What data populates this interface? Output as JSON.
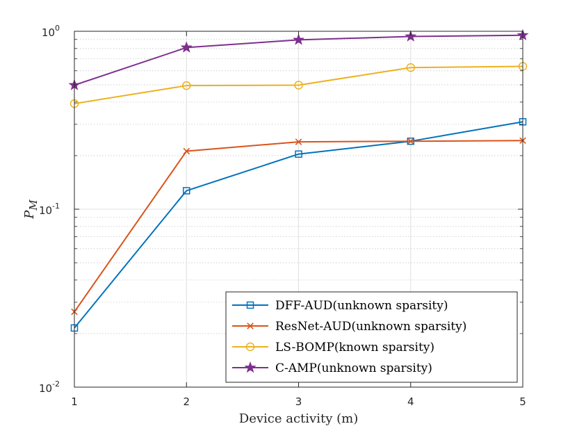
{
  "chart_data": {
    "type": "line",
    "title": "",
    "xlabel": "Device activity (m)",
    "ylabel": "P",
    "ylabel_subscript": "M",
    "yscale": "log",
    "xlim": [
      1,
      5
    ],
    "ylim": [
      0.01,
      1
    ],
    "x": [
      1,
      2,
      3,
      4,
      5
    ],
    "x_ticks": [
      "1",
      "2",
      "3",
      "4",
      "5"
    ],
    "y_ticks": [
      {
        "value": 0.01,
        "base": "10",
        "exp": "-2"
      },
      {
        "value": 0.1,
        "base": "10",
        "exp": "-1"
      },
      {
        "value": 1,
        "base": "10",
        "exp": "0"
      }
    ],
    "grid": true,
    "legend_position": "bottom-right",
    "series": [
      {
        "name": "DFF-AUD(unknown sparsity)",
        "color": "#0072BD",
        "marker": "square",
        "values": [
          0.0215,
          0.127,
          0.204,
          0.241,
          0.31
        ]
      },
      {
        "name": "ResNet-AUD(unknown sparsity)",
        "color": "#D95319",
        "marker": "x",
        "values": [
          0.0265,
          0.212,
          0.239,
          0.241,
          0.243
        ]
      },
      {
        "name": "LS-BOMP(known sparsity)",
        "color": "#EDB120",
        "marker": "circle",
        "values": [
          0.392,
          0.495,
          0.498,
          0.625,
          0.635
        ]
      },
      {
        "name": "C-AMP(unknown sparsity)",
        "color": "#7E2F8E",
        "marker": "star",
        "values": [
          0.498,
          0.81,
          0.895,
          0.935,
          0.95
        ]
      }
    ]
  }
}
